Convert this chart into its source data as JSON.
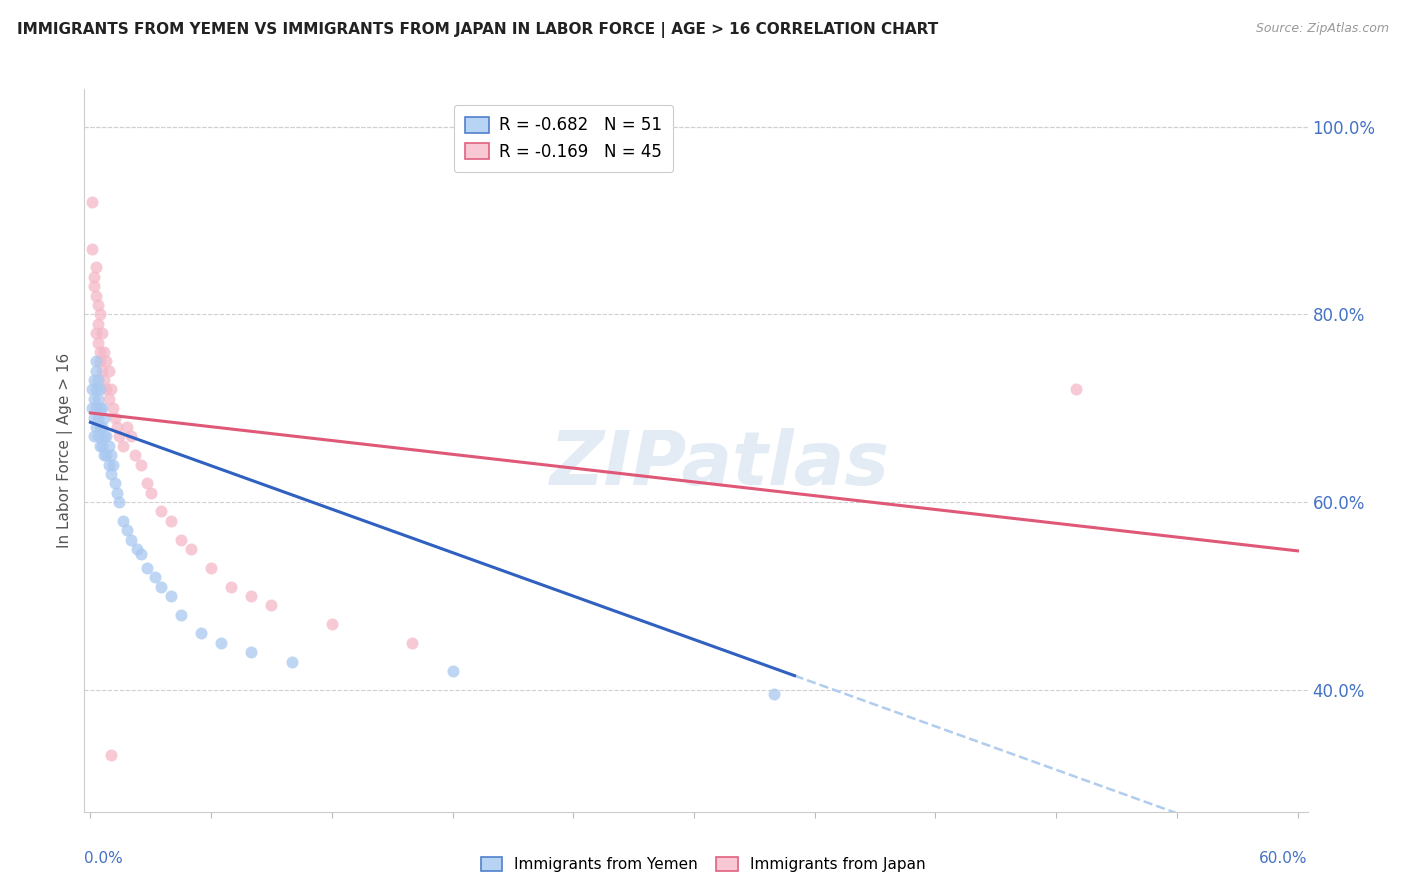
{
  "title": "IMMIGRANTS FROM YEMEN VS IMMIGRANTS FROM JAPAN IN LABOR FORCE | AGE > 16 CORRELATION CHART",
  "source": "Source: ZipAtlas.com",
  "ylabel": "In Labor Force | Age > 16",
  "xlim": [
    -0.003,
    0.605
  ],
  "ylim": [
    0.27,
    1.04
  ],
  "ytick_positions": [
    0.4,
    0.6,
    0.8,
    1.0
  ],
  "ytick_labels": [
    "40.0%",
    "60.0%",
    "80.0%",
    "100.0%"
  ],
  "background_color": "#ffffff",
  "grid_color": "#d0d0d0",
  "scatter_yemen_color": "#a8c8f0",
  "scatter_japan_color": "#f4b8c8",
  "line_yemen_color": "#3060c0",
  "line_japan_color": "#e05878",
  "line_yemen_dashed_color": "#b0ccee",
  "scatter_alpha": 0.75,
  "scatter_size": 75,
  "legend_label_yemen": "R = -0.682   N = 51",
  "legend_label_japan": "R = -0.169   N = 45",
  "legend_patch_yemen": "#b8d4f4",
  "legend_patch_japan": "#f8c8d4",
  "legend_edge_yemen": "#5080cc",
  "legend_edge_japan": "#e06080",
  "watermark": "ZIPatlas",
  "yemen_x": [
    0.001,
    0.001,
    0.002,
    0.002,
    0.002,
    0.002,
    0.003,
    0.003,
    0.003,
    0.003,
    0.003,
    0.004,
    0.004,
    0.004,
    0.004,
    0.005,
    0.005,
    0.005,
    0.005,
    0.006,
    0.006,
    0.006,
    0.007,
    0.007,
    0.007,
    0.008,
    0.008,
    0.009,
    0.009,
    0.01,
    0.01,
    0.011,
    0.012,
    0.013,
    0.014,
    0.016,
    0.018,
    0.02,
    0.023,
    0.025,
    0.028,
    0.032,
    0.035,
    0.04,
    0.045,
    0.055,
    0.065,
    0.08,
    0.1,
    0.18,
    0.34
  ],
  "yemen_y": [
    0.72,
    0.7,
    0.73,
    0.71,
    0.69,
    0.67,
    0.75,
    0.74,
    0.72,
    0.7,
    0.68,
    0.73,
    0.71,
    0.69,
    0.67,
    0.72,
    0.7,
    0.68,
    0.66,
    0.7,
    0.68,
    0.66,
    0.69,
    0.67,
    0.65,
    0.67,
    0.65,
    0.66,
    0.64,
    0.65,
    0.63,
    0.64,
    0.62,
    0.61,
    0.6,
    0.58,
    0.57,
    0.56,
    0.55,
    0.545,
    0.53,
    0.52,
    0.51,
    0.5,
    0.48,
    0.46,
    0.45,
    0.44,
    0.43,
    0.42,
    0.395
  ],
  "japan_x": [
    0.001,
    0.001,
    0.002,
    0.002,
    0.003,
    0.003,
    0.003,
    0.004,
    0.004,
    0.004,
    0.005,
    0.005,
    0.005,
    0.006,
    0.006,
    0.007,
    0.007,
    0.008,
    0.008,
    0.009,
    0.009,
    0.01,
    0.011,
    0.012,
    0.013,
    0.014,
    0.016,
    0.018,
    0.02,
    0.022,
    0.025,
    0.028,
    0.03,
    0.035,
    0.04,
    0.045,
    0.05,
    0.06,
    0.07,
    0.08,
    0.09,
    0.12,
    0.16,
    0.49,
    0.01
  ],
  "japan_y": [
    0.92,
    0.87,
    0.84,
    0.83,
    0.85,
    0.82,
    0.78,
    0.81,
    0.79,
    0.77,
    0.8,
    0.76,
    0.75,
    0.78,
    0.74,
    0.76,
    0.73,
    0.75,
    0.72,
    0.74,
    0.71,
    0.72,
    0.7,
    0.69,
    0.68,
    0.67,
    0.66,
    0.68,
    0.67,
    0.65,
    0.64,
    0.62,
    0.61,
    0.59,
    0.58,
    0.56,
    0.55,
    0.53,
    0.51,
    0.5,
    0.49,
    0.47,
    0.45,
    0.72,
    0.33
  ],
  "line_yemen_x0": 0.0,
  "line_yemen_y0": 0.685,
  "line_yemen_x1": 0.35,
  "line_yemen_y1": 0.415,
  "line_yemen_dash_x0": 0.35,
  "line_yemen_dash_x1": 0.605,
  "line_japan_x0": 0.0,
  "line_japan_y0": 0.695,
  "line_japan_x1": 0.6,
  "line_japan_y1": 0.548
}
